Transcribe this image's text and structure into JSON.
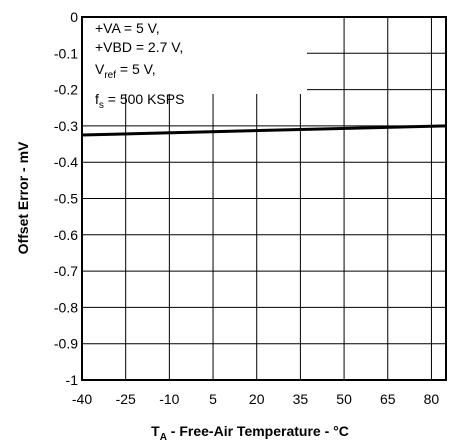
{
  "chart_data": {
    "type": "line",
    "title": "",
    "xlabel": {
      "main": "T",
      "sub": "A",
      "rest": " - Free-Air Temperature - °C"
    },
    "ylabel": "Offset Error - mV",
    "xlim": [
      -40,
      85
    ],
    "ylim": [
      -1,
      0
    ],
    "x_ticks": [
      -40,
      -25,
      -10,
      5,
      20,
      35,
      50,
      65,
      80
    ],
    "y_ticks": [
      0,
      -0.1,
      -0.2,
      -0.3,
      -0.4,
      -0.5,
      -0.6,
      -0.7,
      -0.8,
      -0.9,
      -1
    ],
    "grid": true,
    "series": [
      {
        "x": [
          -40,
          85
        ],
        "y": [
          -0.325,
          -0.3
        ]
      }
    ],
    "conditions": {
      "va": "+VA = 5 V,",
      "vbd": "+VBD = 2.7 V,",
      "vref": {
        "main": "V",
        "sub": "ref",
        "rest": " = 5 V,"
      },
      "fs": {
        "main": "f",
        "sub": "s",
        "rest": " = 500 KSPS"
      }
    }
  }
}
